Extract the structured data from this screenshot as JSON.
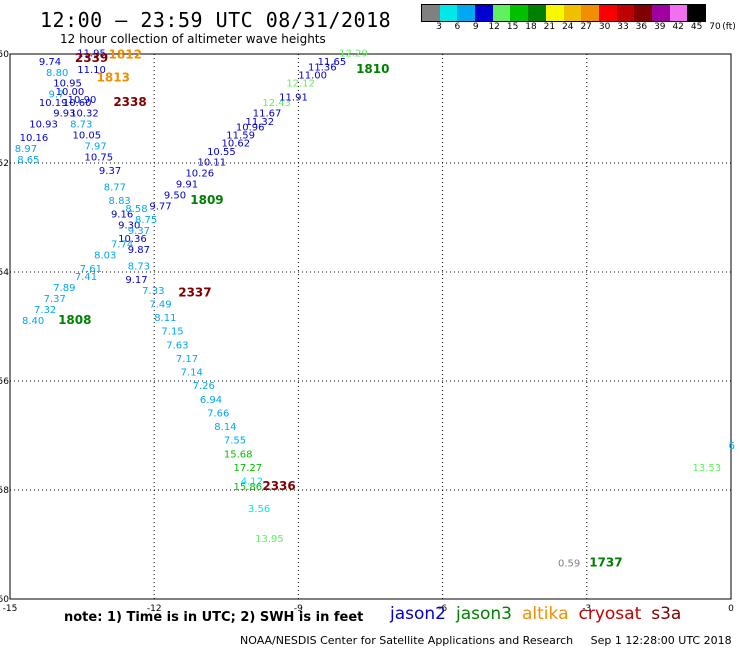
{
  "header": {
    "title": "12:00 — 23:59 UTC 08/31/2018",
    "subtitle": "12 hour collection of altimeter wave heights"
  },
  "scale": {
    "unit": "(ft)",
    "bins": [
      {
        "label": "3",
        "color": "#808080"
      },
      {
        "label": "6",
        "color": "#00e8e8"
      },
      {
        "label": "9",
        "color": "#00a8f0"
      },
      {
        "label": "12",
        "color": "#0000d0"
      },
      {
        "label": "15",
        "color": "#60f060"
      },
      {
        "label": "18",
        "color": "#00c000"
      },
      {
        "label": "21",
        "color": "#008000"
      },
      {
        "label": "24",
        "color": "#f8f800"
      },
      {
        "label": "27",
        "color": "#f0c000"
      },
      {
        "label": "30",
        "color": "#f09000"
      },
      {
        "label": "33",
        "color": "#f80000"
      },
      {
        "label": "36",
        "color": "#c00000"
      },
      {
        "label": "39",
        "color": "#800000"
      },
      {
        "label": "42",
        "color": "#a000a0"
      },
      {
        "label": "45",
        "color": "#f070f0"
      },
      {
        "label": "70",
        "color": "#000000"
      }
    ]
  },
  "axes": {
    "x_ticks": [
      "-15",
      "-12",
      "-9",
      "-6",
      "-3",
      "0"
    ],
    "y_ticks": [
      "-50",
      "-52",
      "-54",
      "-56",
      "-58",
      "-60"
    ],
    "lon_range": [
      -15,
      0
    ],
    "lat_range": [
      -60,
      -50
    ]
  },
  "readings": [
    {
      "text": "11.95",
      "lon": -13.6,
      "lat": -50.05,
      "color": "#0000d0"
    },
    {
      "text": "9.74",
      "lon": -14.4,
      "lat": -50.2,
      "color": "#0000d0"
    },
    {
      "text": "11.10",
      "lon": -13.6,
      "lat": -50.35,
      "color": "#0000d0"
    },
    {
      "text": "8.80",
      "lon": -14.25,
      "lat": -50.4,
      "color": "#00a8f0"
    },
    {
      "text": "10.95",
      "lon": -14.1,
      "lat": -50.6,
      "color": "#0000d0"
    },
    {
      "text": "9.7",
      "lon": -14.2,
      "lat": -50.8,
      "color": "#00a8f0"
    },
    {
      "text": "10.00",
      "lon": -14.05,
      "lat": -50.75,
      "color": "#0000d0"
    },
    {
      "text": "10.90",
      "lon": -13.8,
      "lat": -50.9,
      "color": "#0000d0"
    },
    {
      "text": "10.19",
      "lon": -14.4,
      "lat": -50.95,
      "color": "#0000d0"
    },
    {
      "text": "10.60",
      "lon": -13.9,
      "lat": -50.95,
      "color": "#0000d0"
    },
    {
      "text": "9.93",
      "lon": -14.1,
      "lat": -51.15,
      "color": "#0000d0"
    },
    {
      "text": "10.32",
      "lon": -13.75,
      "lat": -51.15,
      "color": "#0000d0"
    },
    {
      "text": "10.93",
      "lon": -14.6,
      "lat": -51.35,
      "color": "#0000d0"
    },
    {
      "text": "8.73",
      "lon": -13.75,
      "lat": -51.35,
      "color": "#00a8f0"
    },
    {
      "text": "10.16",
      "lon": -14.8,
      "lat": -51.6,
      "color": "#0000d0"
    },
    {
      "text": "10.05",
      "lon": -13.7,
      "lat": -51.55,
      "color": "#0000d0"
    },
    {
      "text": "8.97",
      "lon": -14.9,
      "lat": -51.8,
      "color": "#00a8f0"
    },
    {
      "text": "7.97",
      "lon": -13.45,
      "lat": -51.75,
      "color": "#00a8f0"
    },
    {
      "text": "8.65",
      "lon": -14.85,
      "lat": -52.0,
      "color": "#00a8f0"
    },
    {
      "text": "10.75",
      "lon": -13.45,
      "lat": -51.95,
      "color": "#0000d0"
    },
    {
      "text": "9.37",
      "lon": -13.15,
      "lat": -52.2,
      "color": "#0000d0"
    },
    {
      "text": "8.77",
      "lon": -13.05,
      "lat": -52.5,
      "color": "#00a8f0"
    },
    {
      "text": "8.83",
      "lon": -12.95,
      "lat": -52.75,
      "color": "#00a8f0"
    },
    {
      "text": "9.16",
      "lon": -12.9,
      "lat": -53.0,
      "color": "#0000d0"
    },
    {
      "text": "9.30",
      "lon": -12.75,
      "lat": -53.2,
      "color": "#0000d0"
    },
    {
      "text": "10.36",
      "lon": -12.75,
      "lat": -53.45,
      "color": "#0000d0"
    },
    {
      "text": "9.87",
      "lon": -12.55,
      "lat": -53.65,
      "color": "#0000d0"
    },
    {
      "text": "8.73",
      "lon": -12.55,
      "lat": -53.95,
      "color": "#00a8f0"
    },
    {
      "text": "9.17",
      "lon": -12.6,
      "lat": -54.2,
      "color": "#0000d0"
    },
    {
      "text": "7.33",
      "lon": -12.25,
      "lat": -54.4,
      "color": "#00a8f0"
    },
    {
      "text": "7.49",
      "lon": -12.1,
      "lat": -54.65,
      "color": "#00a8f0"
    },
    {
      "text": "8.11",
      "lon": -12.0,
      "lat": -54.9,
      "color": "#00a8f0"
    },
    {
      "text": "7.15",
      "lon": -11.85,
      "lat": -55.15,
      "color": "#00a8f0"
    },
    {
      "text": "7.63",
      "lon": -11.75,
      "lat": -55.4,
      "color": "#00a8f0"
    },
    {
      "text": "7.17",
      "lon": -11.55,
      "lat": -55.65,
      "color": "#00a8f0"
    },
    {
      "text": "7.14",
      "lon": -11.45,
      "lat": -55.9,
      "color": "#00a8f0"
    },
    {
      "text": "7.26",
      "lon": -11.2,
      "lat": -56.15,
      "color": "#00a8f0"
    },
    {
      "text": "6.94",
      "lon": -11.05,
      "lat": -56.4,
      "color": "#00a8f0"
    },
    {
      "text": "7.66",
      "lon": -10.9,
      "lat": -56.65,
      "color": "#00a8f0"
    },
    {
      "text": "8.14",
      "lon": -10.75,
      "lat": -56.9,
      "color": "#00a8f0"
    },
    {
      "text": "7.55",
      "lon": -10.55,
      "lat": -57.15,
      "color": "#00a8f0"
    },
    {
      "text": "15.68",
      "lon": -10.55,
      "lat": -57.4,
      "color": "#00c000"
    },
    {
      "text": "17.27",
      "lon": -10.35,
      "lat": -57.65,
      "color": "#00c000"
    },
    {
      "text": "4.12",
      "lon": -10.2,
      "lat": -57.9,
      "color": "#00e8e8"
    },
    {
      "text": "15.86",
      "lon": -10.35,
      "lat": -58.0,
      "color": "#00c000"
    },
    {
      "text": "3.56",
      "lon": -10.05,
      "lat": -58.4,
      "color": "#00e8e8"
    },
    {
      "text": "13.95",
      "lon": -9.9,
      "lat": -58.95,
      "color": "#60f060"
    },
    {
      "text": "8.58",
      "lon": -12.6,
      "lat": -52.9,
      "color": "#00a8f0"
    },
    {
      "text": "8.75",
      "lon": -12.4,
      "lat": -53.1,
      "color": "#00a8f0"
    },
    {
      "text": "9.37",
      "lon": -12.55,
      "lat": -53.3,
      "color": "#00a8f0"
    },
    {
      "text": "7.74",
      "lon": -12.9,
      "lat": -53.55,
      "color": "#00a8f0"
    },
    {
      "text": "8.03",
      "lon": -13.25,
      "lat": -53.75,
      "color": "#00a8f0"
    },
    {
      "text": "7.61",
      "lon": -13.55,
      "lat": -54.0,
      "color": "#00a8f0"
    },
    {
      "text": "7.41",
      "lon": -13.65,
      "lat": -54.15,
      "color": "#00a8f0"
    },
    {
      "text": "7.89",
      "lon": -14.1,
      "lat": -54.35,
      "color": "#00a8f0"
    },
    {
      "text": "7.37",
      "lon": -14.3,
      "lat": -54.55,
      "color": "#00a8f0"
    },
    {
      "text": "7.32",
      "lon": -14.5,
      "lat": -54.75,
      "color": "#00a8f0"
    },
    {
      "text": "8.40",
      "lon": -14.75,
      "lat": -54.95,
      "color": "#00a8f0"
    },
    {
      "text": "9.77",
      "lon": -12.1,
      "lat": -52.85,
      "color": "#0000d0"
    },
    {
      "text": "9.50",
      "lon": -11.8,
      "lat": -52.65,
      "color": "#0000d0"
    },
    {
      "text": "9.91",
      "lon": -11.55,
      "lat": -52.45,
      "color": "#0000d0"
    },
    {
      "text": "10.26",
      "lon": -11.35,
      "lat": -52.25,
      "color": "#0000d0"
    },
    {
      "text": "10.11",
      "lon": -11.1,
      "lat": -52.05,
      "color": "#0000d0"
    },
    {
      "text": "10.55",
      "lon": -10.9,
      "lat": -51.85,
      "color": "#0000d0"
    },
    {
      "text": "10.62",
      "lon": -10.6,
      "lat": -51.7,
      "color": "#0000d0"
    },
    {
      "text": "11.59",
      "lon": -10.5,
      "lat": -51.55,
      "color": "#0000d0"
    },
    {
      "text": "10.96",
      "lon": -10.3,
      "lat": -51.4,
      "color": "#0000d0"
    },
    {
      "text": "11.32",
      "lon": -10.1,
      "lat": -51.3,
      "color": "#0000d0"
    },
    {
      "text": "11.67",
      "lon": -9.95,
      "lat": -51.15,
      "color": "#0000d0"
    },
    {
      "text": "12.43",
      "lon": -9.75,
      "lat": -50.95,
      "color": "#60f060"
    },
    {
      "text": "11.91",
      "lon": -9.4,
      "lat": -50.85,
      "color": "#0000d0"
    },
    {
      "text": "12.12",
      "lon": -9.25,
      "lat": -50.6,
      "color": "#60f060"
    },
    {
      "text": "11.00",
      "lon": -9.0,
      "lat": -50.45,
      "color": "#0000d0"
    },
    {
      "text": "11.36",
      "lon": -8.8,
      "lat": -50.3,
      "color": "#0000d0"
    },
    {
      "text": "11.65",
      "lon": -8.6,
      "lat": -50.2,
      "color": "#0000d0"
    },
    {
      "text": "12.29",
      "lon": -8.15,
      "lat": -50.05,
      "color": "#60f060"
    },
    {
      "text": "13.53",
      "lon": -0.8,
      "lat": -57.65,
      "color": "#60f060"
    },
    {
      "text": "6",
      "lon": -0.05,
      "lat": -57.25,
      "color": "#00a8f0"
    },
    {
      "text": "0.59",
      "lon": -3.6,
      "lat": -59.4,
      "color": "#808080"
    }
  ],
  "passes": [
    {
      "text": "1812",
      "lon": -12.95,
      "lat": -50.08,
      "color": "#f09000"
    },
    {
      "text": "2339",
      "lon": -13.65,
      "lat": -50.15,
      "color": "#800000"
    },
    {
      "text": "1813",
      "lon": -13.2,
      "lat": -50.5,
      "color": "#f09000"
    },
    {
      "text": "2338",
      "lon": -12.85,
      "lat": -50.95,
      "color": "#800000"
    },
    {
      "text": "1810",
      "lon": -7.8,
      "lat": -50.35,
      "color": "#008000"
    },
    {
      "text": "1809",
      "lon": -11.25,
      "lat": -52.75,
      "color": "#008000"
    },
    {
      "text": "2337",
      "lon": -11.5,
      "lat": -54.45,
      "color": "#800000"
    },
    {
      "text": "1808",
      "lon": -14.0,
      "lat": -54.95,
      "color": "#008000"
    },
    {
      "text": "2336",
      "lon": -9.75,
      "lat": -58.0,
      "color": "#800000"
    },
    {
      "text": "1737",
      "lon": -2.95,
      "lat": -59.4,
      "color": "#008000"
    }
  ],
  "notes": {
    "text": "note: 1) Time is in UTC; 2) SWH is in feet"
  },
  "satellites": [
    {
      "name": "jason2",
      "color": "#0000d0"
    },
    {
      "name": "jason3",
      "color": "#008000"
    },
    {
      "name": "altika",
      "color": "#f09000"
    },
    {
      "name": "cryosat",
      "color": "#c00000"
    },
    {
      "name": "s3a",
      "color": "#800000"
    }
  ],
  "footer": {
    "agency": "NOAA/NESDIS Center for Satellite Applications and Research",
    "timestamp": "Sep  1 12:28:00 UTC 2018"
  }
}
